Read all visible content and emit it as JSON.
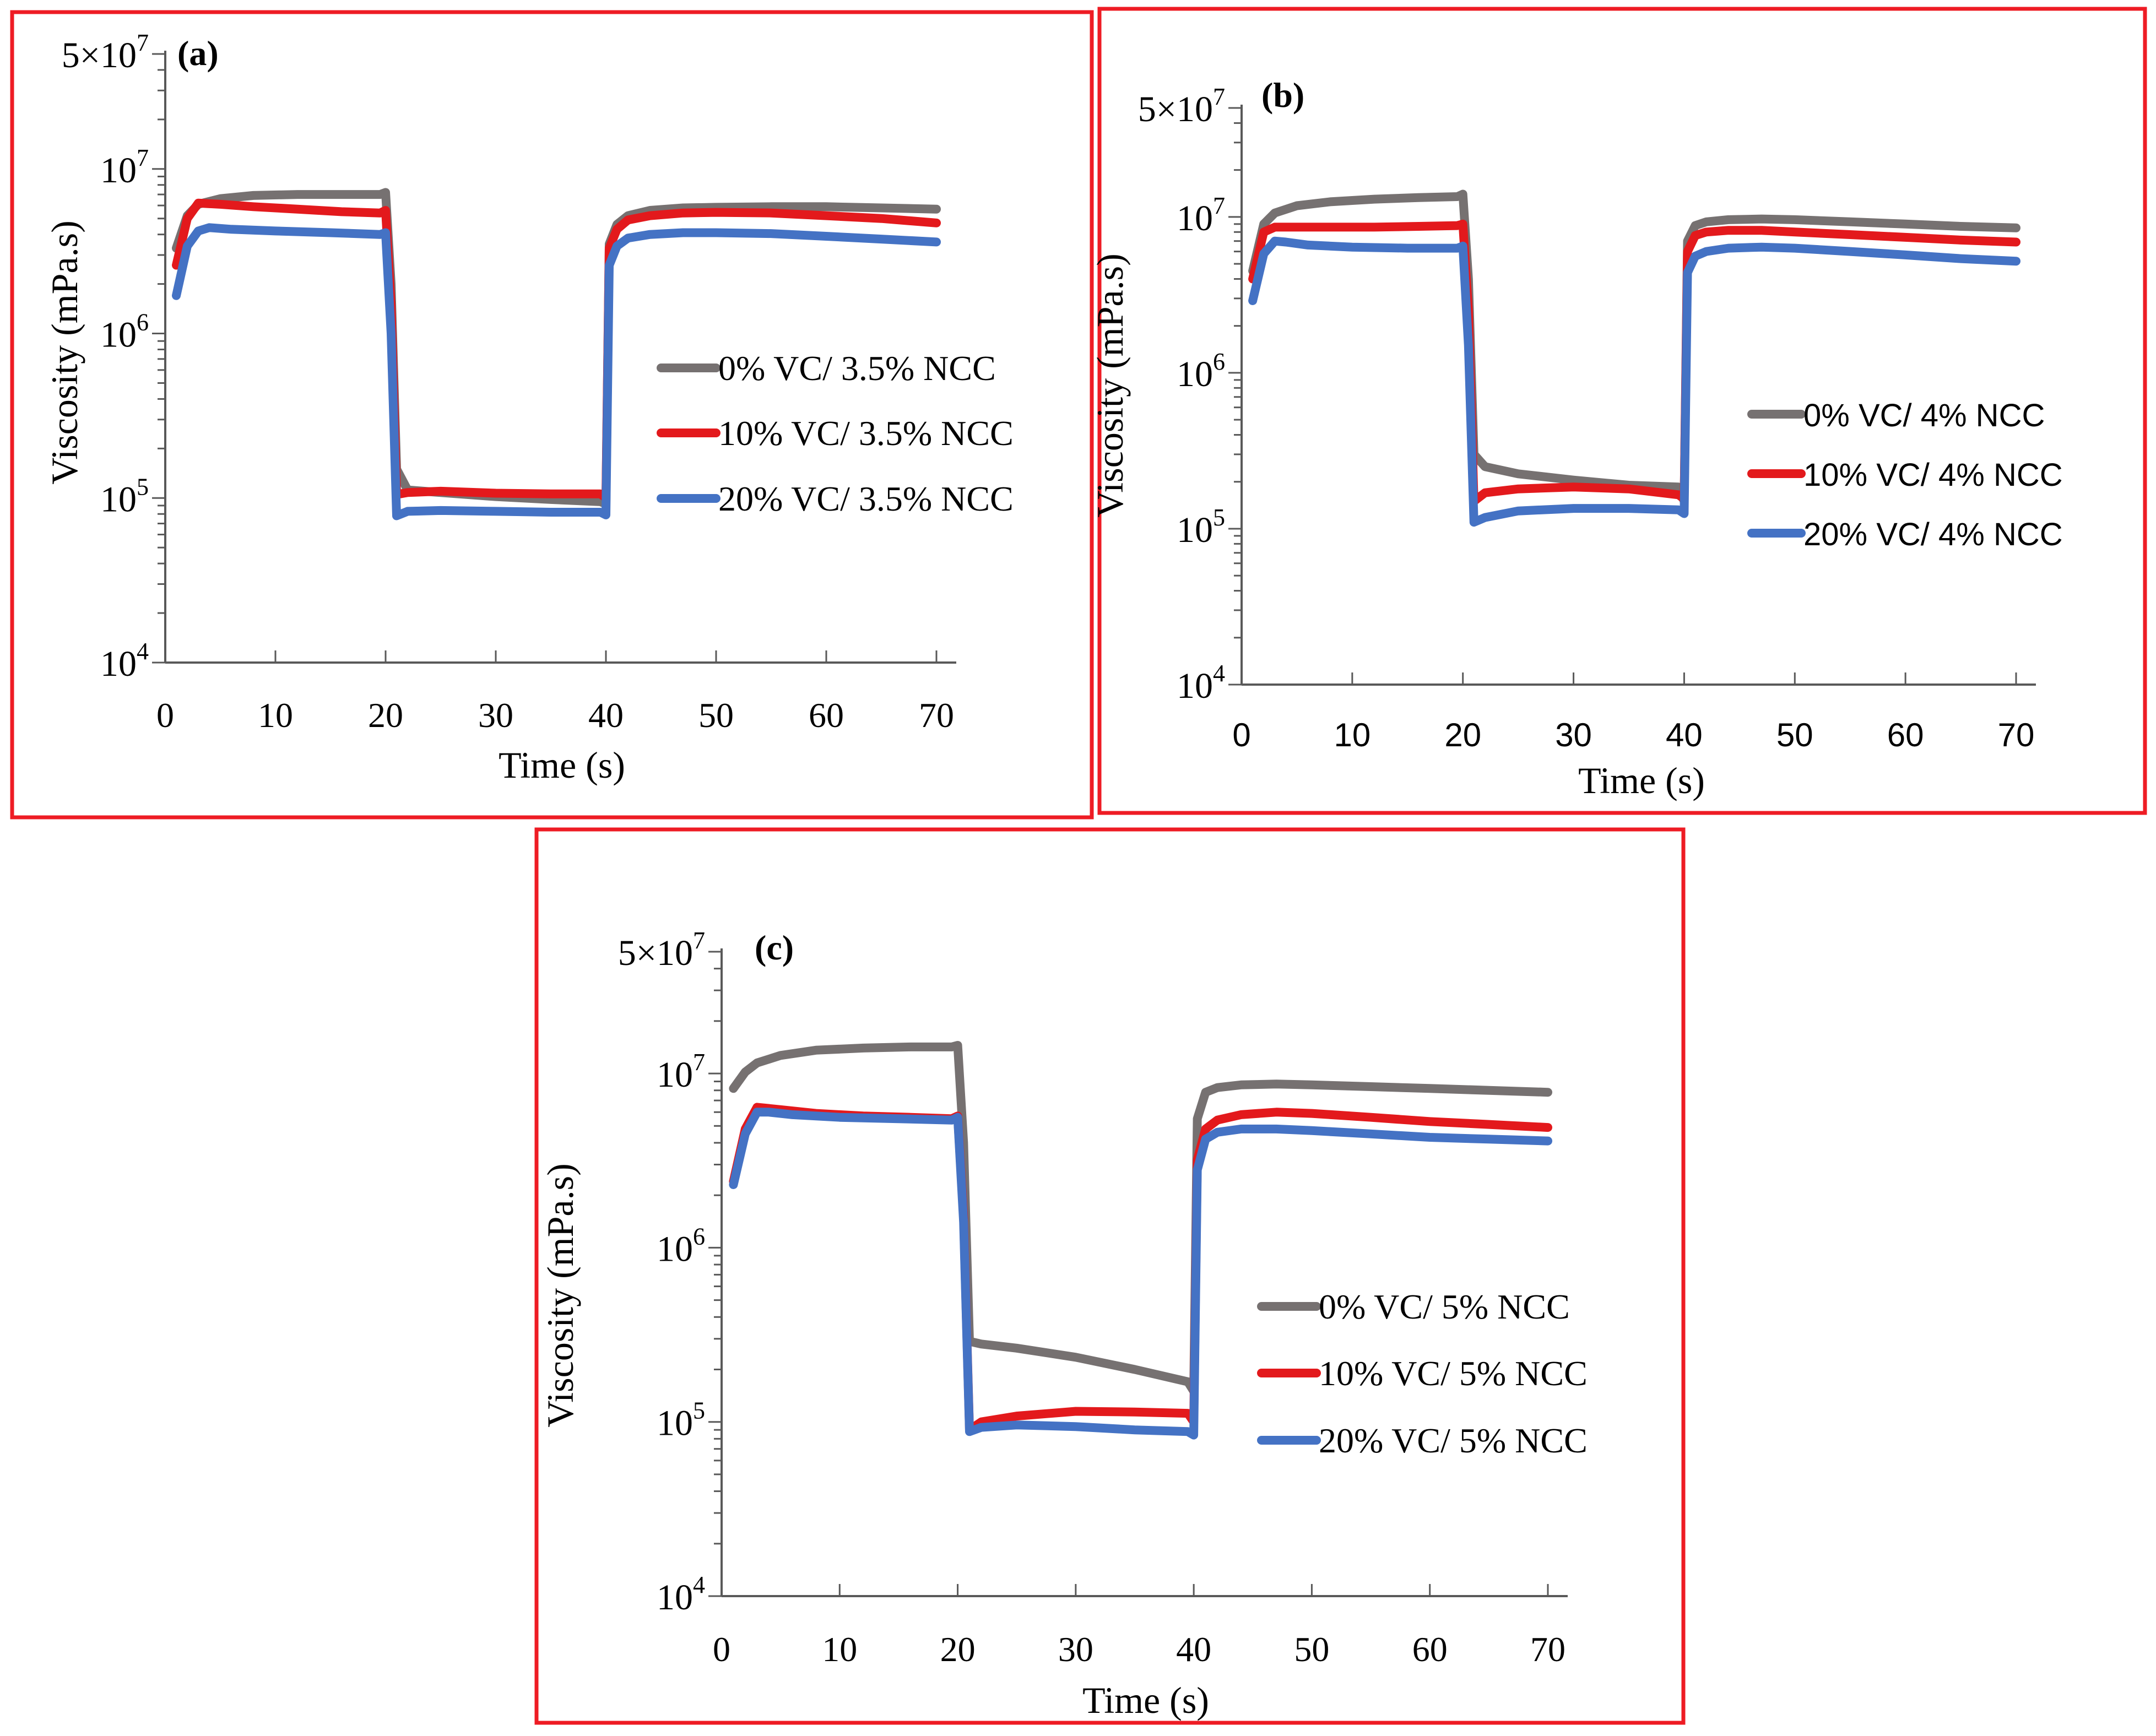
{
  "colors": {
    "frame": "#ee1c24",
    "axis": "#595959",
    "series_0": "#767171",
    "series_10": "#e3191c",
    "series_20": "#4472c4"
  },
  "chart_data": [
    {
      "panel_label": "(a)",
      "type": "line",
      "xlabel": "Time (s)",
      "ylabel": "Viscosity (mPa.s)",
      "xlim": [
        0,
        70
      ],
      "ylim": [
        10000,
        50000000
      ],
      "yscale": "log",
      "x_ticks": [
        "0",
        "10",
        "20",
        "30",
        "40",
        "50",
        "60",
        "70"
      ],
      "y_ticks": [
        {
          "base": "10",
          "exp": "4",
          "value": 10000
        },
        {
          "base": "10",
          "exp": "5",
          "value": 100000
        },
        {
          "base": "10",
          "exp": "6",
          "value": 1000000
        },
        {
          "base": "10",
          "exp": "7",
          "value": 10000000
        },
        {
          "base": "5×10",
          "exp": "7",
          "value": 50000000
        }
      ],
      "legend_position": "center-right",
      "series": [
        {
          "name": "0% VC/ 3.5% NCC",
          "color_key": "series_0",
          "x": [
            1,
            2,
            3,
            5,
            8,
            12,
            16,
            19.5,
            20,
            20.5,
            21,
            22,
            25,
            30,
            35,
            39.5,
            40,
            40.3,
            41,
            42,
            44,
            47,
            50,
            55,
            60,
            65,
            70
          ],
          "y": [
            3300000,
            5200000,
            6100000,
            6600000,
            6900000,
            7000000,
            7000000,
            7000000,
            7200000,
            2000000,
            150000,
            112000,
            108000,
            102000,
            98000,
            95000,
            92000,
            3500000,
            4600000,
            5200000,
            5600000,
            5800000,
            5850000,
            5900000,
            5900000,
            5800000,
            5700000
          ]
        },
        {
          "name": "10% VC/ 3.5% NCC",
          "color_key": "series_10",
          "x": [
            1,
            2,
            3,
            5,
            8,
            12,
            16,
            19.5,
            20,
            20.5,
            21,
            22,
            25,
            30,
            35,
            39.5,
            40,
            40.3,
            41,
            42,
            44,
            47,
            50,
            55,
            60,
            65,
            70
          ],
          "y": [
            2600000,
            5000000,
            6200000,
            6100000,
            5900000,
            5700000,
            5500000,
            5400000,
            5600000,
            1500000,
            105000,
            108000,
            110000,
            107000,
            106000,
            106000,
            100000,
            3300000,
            4300000,
            4900000,
            5200000,
            5400000,
            5450000,
            5400000,
            5200000,
            5000000,
            4700000
          ]
        },
        {
          "name": "20% VC/ 3.5% NCC",
          "color_key": "series_20",
          "x": [
            1,
            2,
            3,
            4,
            6,
            10,
            15,
            19.5,
            20,
            20.5,
            21,
            22,
            25,
            30,
            35,
            39.5,
            40,
            40.3,
            41,
            42,
            44,
            47,
            50,
            55,
            60,
            65,
            70
          ],
          "y": [
            1700000,
            3400000,
            4200000,
            4400000,
            4300000,
            4200000,
            4100000,
            4000000,
            4100000,
            1000000,
            78000,
            83000,
            84000,
            83000,
            82000,
            82000,
            79000,
            2600000,
            3400000,
            3800000,
            4000000,
            4100000,
            4100000,
            4050000,
            3900000,
            3750000,
            3600000
          ]
        }
      ]
    },
    {
      "panel_label": "(b)",
      "type": "line",
      "xlabel": "Time (s)",
      "ylabel": "Viscosity (mPa.s)",
      "xlim": [
        0,
        70
      ],
      "ylim": [
        10000,
        50000000
      ],
      "yscale": "log",
      "x_ticks": [
        "0",
        "10",
        "20",
        "30",
        "40",
        "50",
        "60",
        "70"
      ],
      "y_ticks": [
        {
          "base": "10",
          "exp": "4",
          "value": 10000
        },
        {
          "base": "10",
          "exp": "5",
          "value": 100000
        },
        {
          "base": "10",
          "exp": "6",
          "value": 1000000
        },
        {
          "base": "10",
          "exp": "7",
          "value": 10000000
        },
        {
          "base": "5×10",
          "exp": "7",
          "value": 50000000
        }
      ],
      "legend_position": "center-right",
      "series": [
        {
          "name": "0% VC/ 4% NCC",
          "color_key": "series_0",
          "x": [
            1,
            2,
            3,
            5,
            8,
            12,
            16,
            19.5,
            20,
            20.5,
            21,
            22,
            25,
            30,
            35,
            39.5,
            40,
            40.3,
            41,
            42,
            44,
            47,
            50,
            55,
            60,
            65,
            70
          ],
          "y": [
            4500000,
            9000000,
            10600000,
            11800000,
            12500000,
            13000000,
            13300000,
            13500000,
            14000000,
            4000000,
            300000,
            250000,
            225000,
            205000,
            190000,
            185000,
            150000,
            7000000,
            8800000,
            9300000,
            9600000,
            9700000,
            9600000,
            9300000,
            9000000,
            8700000,
            8500000
          ]
        },
        {
          "name": "10% VC/ 4% NCC",
          "color_key": "series_10",
          "x": [
            1,
            2,
            3,
            5,
            8,
            12,
            16,
            19.5,
            20,
            20.5,
            21,
            22,
            25,
            30,
            35,
            39.5,
            40,
            40.3,
            41,
            42,
            44,
            47,
            50,
            55,
            60,
            65,
            70
          ],
          "y": [
            4000000,
            8000000,
            8600000,
            8600000,
            8600000,
            8600000,
            8700000,
            8800000,
            9000000,
            2500000,
            150000,
            170000,
            180000,
            185000,
            180000,
            165000,
            155000,
            6000000,
            7600000,
            8000000,
            8200000,
            8200000,
            8000000,
            7700000,
            7400000,
            7100000,
            6900000
          ]
        },
        {
          "name": "20% VC/ 4% NCC",
          "color_key": "series_20",
          "x": [
            1,
            2,
            3,
            4,
            6,
            10,
            15,
            19.5,
            20,
            20.5,
            21,
            22,
            25,
            30,
            35,
            39.5,
            40,
            40.3,
            41,
            42,
            44,
            47,
            50,
            55,
            60,
            65,
            70
          ],
          "y": [
            2900000,
            5800000,
            7000000,
            6900000,
            6600000,
            6400000,
            6300000,
            6300000,
            6500000,
            1500000,
            110000,
            118000,
            130000,
            135000,
            135000,
            132000,
            125000,
            4400000,
            5600000,
            6000000,
            6300000,
            6400000,
            6300000,
            6000000,
            5700000,
            5400000,
            5200000
          ]
        }
      ]
    },
    {
      "panel_label": "(c)",
      "type": "line",
      "xlabel": "Time (s)",
      "ylabel": "Viscosity (mPa.s)",
      "xlim": [
        0,
        70
      ],
      "ylim": [
        10000,
        50000000
      ],
      "yscale": "log",
      "x_ticks": [
        "0",
        "10",
        "20",
        "30",
        "40",
        "50",
        "60",
        "70"
      ],
      "y_ticks": [
        {
          "base": "10",
          "exp": "4",
          "value": 10000
        },
        {
          "base": "10",
          "exp": "5",
          "value": 100000
        },
        {
          "base": "10",
          "exp": "6",
          "value": 1000000
        },
        {
          "base": "10",
          "exp": "7",
          "value": 10000000
        },
        {
          "base": "5×10",
          "exp": "7",
          "value": 50000000
        }
      ],
      "legend_position": "center-right",
      "series": [
        {
          "name": "0% VC/ 5% NCC",
          "color_key": "series_0",
          "x": [
            1,
            2,
            3,
            5,
            8,
            12,
            16,
            19.5,
            20,
            20.5,
            21,
            22,
            25,
            30,
            35,
            39.5,
            40,
            40.3,
            41,
            42,
            44,
            47,
            50,
            55,
            60,
            65,
            70
          ],
          "y": [
            8200000,
            10200000,
            11500000,
            12700000,
            13600000,
            14000000,
            14200000,
            14200000,
            14500000,
            4000000,
            290000,
            280000,
            265000,
            235000,
            200000,
            170000,
            150000,
            5500000,
            7800000,
            8300000,
            8600000,
            8700000,
            8600000,
            8400000,
            8200000,
            8000000,
            7800000
          ]
        },
        {
          "name": "10% VC/ 5% NCC",
          "color_key": "series_10",
          "x": [
            1,
            2,
            3,
            5,
            8,
            12,
            16,
            19.5,
            20,
            20.5,
            21,
            22,
            25,
            30,
            35,
            39.5,
            40,
            40.3,
            41,
            42,
            44,
            47,
            50,
            55,
            60,
            65,
            70
          ],
          "y": [
            2400000,
            4800000,
            6400000,
            6200000,
            5900000,
            5700000,
            5600000,
            5500000,
            5700000,
            1500000,
            90000,
            100000,
            108000,
            115000,
            114000,
            112000,
            100000,
            3200000,
            4800000,
            5400000,
            5800000,
            6000000,
            5900000,
            5600000,
            5300000,
            5100000,
            4900000
          ]
        },
        {
          "name": "20% VC/ 5% NCC",
          "color_key": "series_20",
          "x": [
            1,
            2,
            3,
            4,
            6,
            10,
            15,
            19.5,
            20,
            20.5,
            21,
            22,
            25,
            30,
            35,
            39.5,
            40,
            40.3,
            41,
            42,
            44,
            47,
            50,
            55,
            60,
            65,
            70
          ],
          "y": [
            2300000,
            4500000,
            6000000,
            6000000,
            5800000,
            5600000,
            5500000,
            5400000,
            5600000,
            1400000,
            88000,
            93000,
            96000,
            94000,
            90000,
            88000,
            84000,
            2800000,
            4200000,
            4600000,
            4800000,
            4800000,
            4700000,
            4500000,
            4300000,
            4200000,
            4100000
          ]
        }
      ]
    }
  ]
}
